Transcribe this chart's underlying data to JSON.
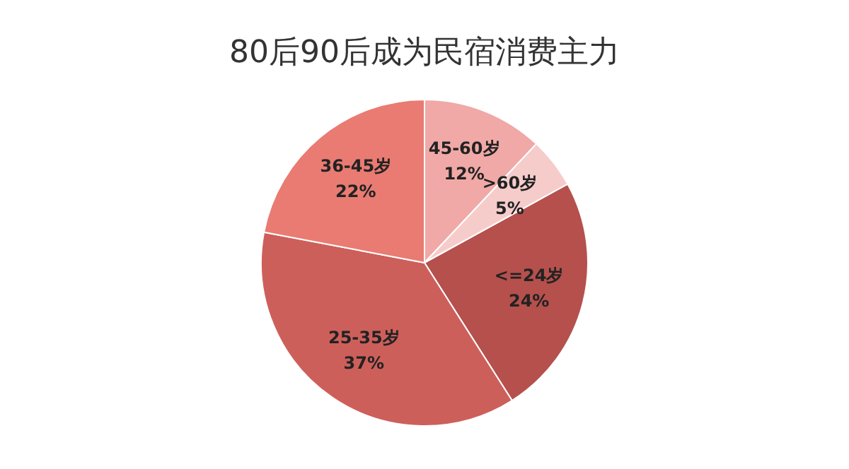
{
  "chart_data": {
    "type": "pie",
    "title": "80后90后成为民宿消费主力",
    "categories": [
      "45-60岁",
      ">60岁",
      "<=24岁",
      "25-35岁",
      "36-45岁"
    ],
    "values": [
      12,
      5,
      24,
      37,
      22
    ],
    "value_labels": [
      "12%",
      "5%",
      "24%",
      "37%",
      "22%"
    ],
    "colors": [
      "#f0a9a6",
      "#f6cccb",
      "#b5504c",
      "#cd5f5b",
      "#e97b72"
    ],
    "legend": false
  }
}
